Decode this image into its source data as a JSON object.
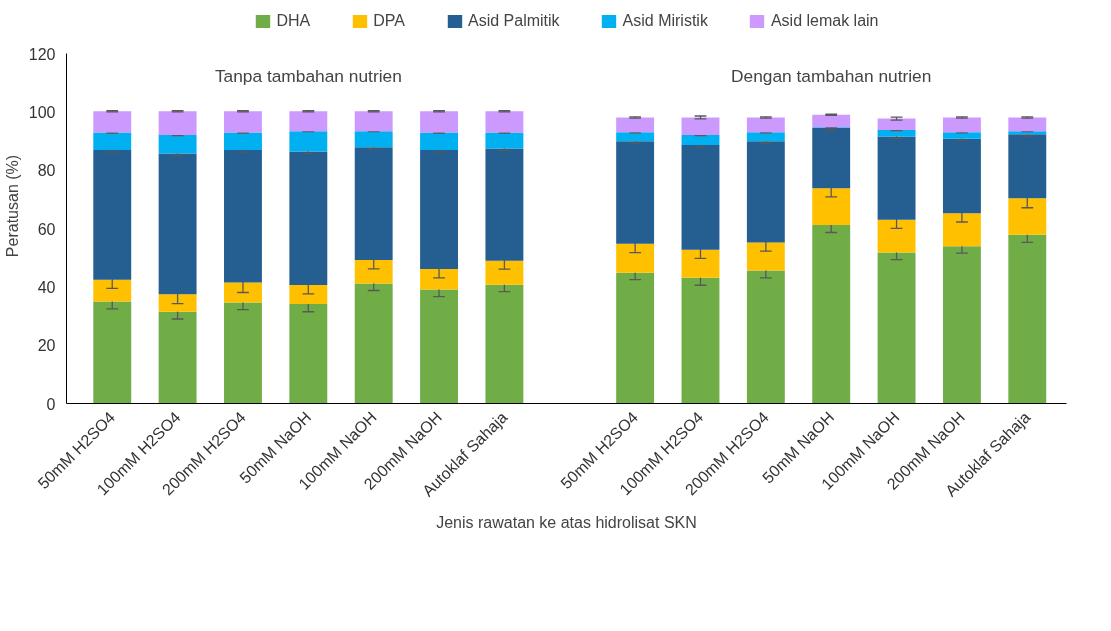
{
  "chart_data": {
    "type": "bar",
    "stacked": true,
    "xlabel": "Jenis rawatan ke atas hidrolisat SKN",
    "ylabel": "Peratusan (%)",
    "categories": [
      "50mM H2SO4",
      "100mM H2SO4",
      "200mM H2SO4",
      "50mM NaOH",
      "100mM NaOH",
      "200mM NaOH",
      "Autoklaf Sahaja",
      null,
      "50mM H2SO4",
      "100mM H2SO4",
      "200mM H2SO4",
      "50mM NaOH",
      "100mM NaOH",
      "200mM NaOH",
      "Autoklaf Sahaja"
    ],
    "series": [
      {
        "name": "DHA",
        "color": "#70ad47",
        "values": [
          35,
          31.5,
          34.7,
          34.2,
          41.2,
          39.1,
          40.8,
          null,
          44.9,
          43.2,
          45.7,
          61.3,
          51.8,
          54,
          57.9
        ],
        "errors": [
          2.5,
          2.5,
          2.5,
          2.7,
          2.4,
          2.4,
          2.4,
          null,
          2.4,
          2.6,
          2.6,
          2.6,
          2.4,
          2.4,
          2.6
        ]
      },
      {
        "name": "DPA",
        "color": "#ffc000",
        "values": [
          7.5,
          6,
          6.8,
          6.5,
          8.1,
          7.1,
          8.2,
          null,
          9.9,
          9.6,
          9.6,
          12.6,
          11.3,
          11.3,
          12.6
        ],
        "errors": [
          3,
          3.2,
          3.4,
          3.1,
          3.1,
          3.1,
          2.9,
          null,
          3,
          3,
          3,
          3,
          3,
          3,
          3.3
        ]
      },
      {
        "name": "Asid Palmitik",
        "color": "#255e91",
        "values": [
          44.5,
          48.3,
          45.5,
          45.8,
          38.7,
          40.8,
          38.5,
          null,
          35.2,
          35.9,
          34.7,
          20.7,
          28.6,
          25.6,
          21.9
        ],
        "errors": [
          0.7,
          0.7,
          0.7,
          0.7,
          0.7,
          0.7,
          0.7,
          null,
          0.7,
          0.7,
          0.7,
          0.7,
          0.7,
          0.6,
          0.6
        ]
      },
      {
        "name": "Asid Miristik",
        "color": "#00b0f0",
        "values": [
          6,
          6.4,
          6,
          7,
          5.5,
          6,
          5.5,
          null,
          3.1,
          3.5,
          3.1,
          0.2,
          2.2,
          2.2,
          1.1
        ],
        "errors": [
          0.2,
          0.2,
          0.2,
          0.2,
          0.2,
          0.2,
          0.2,
          null,
          0.2,
          0.2,
          0.2,
          0.2,
          0.2,
          0.2,
          0.2
        ]
      },
      {
        "name": "Asid lemak lain",
        "color": "#cc99ff",
        "values": [
          7.3,
          8.1,
          7.3,
          6.8,
          6.8,
          7.3,
          7.3,
          null,
          5.1,
          6,
          5.1,
          4.3,
          3.9,
          5.1,
          4.7
        ],
        "errors": [
          0.2,
          0.2,
          0.2,
          0.2,
          0.2,
          0.2,
          0.2,
          null,
          0.2,
          0.5,
          0.2,
          0.2,
          0.5,
          0.2,
          0.2
        ]
      }
    ],
    "ylim": [
      0,
      120
    ],
    "yticks": [
      0,
      20,
      40,
      60,
      80,
      100,
      120
    ],
    "grid": false,
    "legend": "top",
    "annotations": [
      "Tanpa tambahan nutrien",
      "Dengan tambahan nutrien"
    ]
  }
}
